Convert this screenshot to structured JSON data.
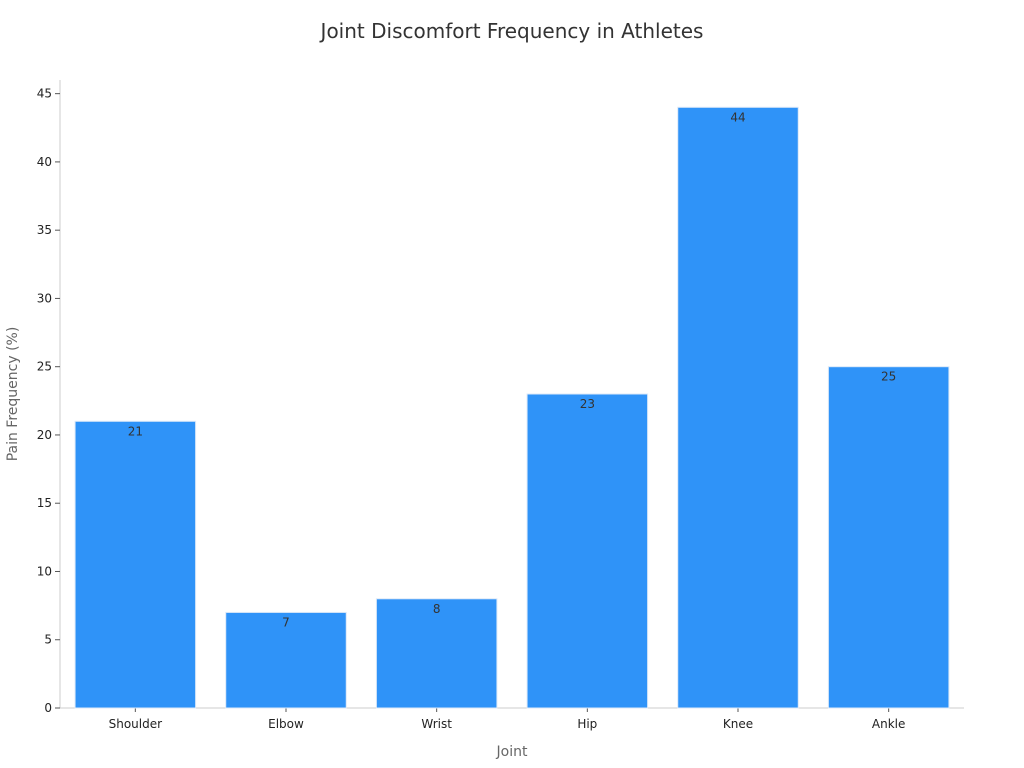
{
  "chart_data": {
    "type": "bar",
    "title": "Joint Discomfort Frequency in Athletes",
    "xlabel": "Joint",
    "ylabel": "Pain Frequency (%)",
    "categories": [
      "Shoulder",
      "Elbow",
      "Wrist",
      "Hip",
      "Knee",
      "Ankle"
    ],
    "values": [
      21,
      7,
      8,
      23,
      44,
      25
    ],
    "ylim": [
      0,
      46
    ],
    "yticks": [
      0,
      5,
      10,
      15,
      20,
      25,
      30,
      35,
      40,
      45
    ],
    "grid": false,
    "legend": "none",
    "bar_color": "#2f93f8",
    "bar_edge_color": "#dce9f8",
    "axis_color": "#cccccc",
    "data_labels": true
  }
}
